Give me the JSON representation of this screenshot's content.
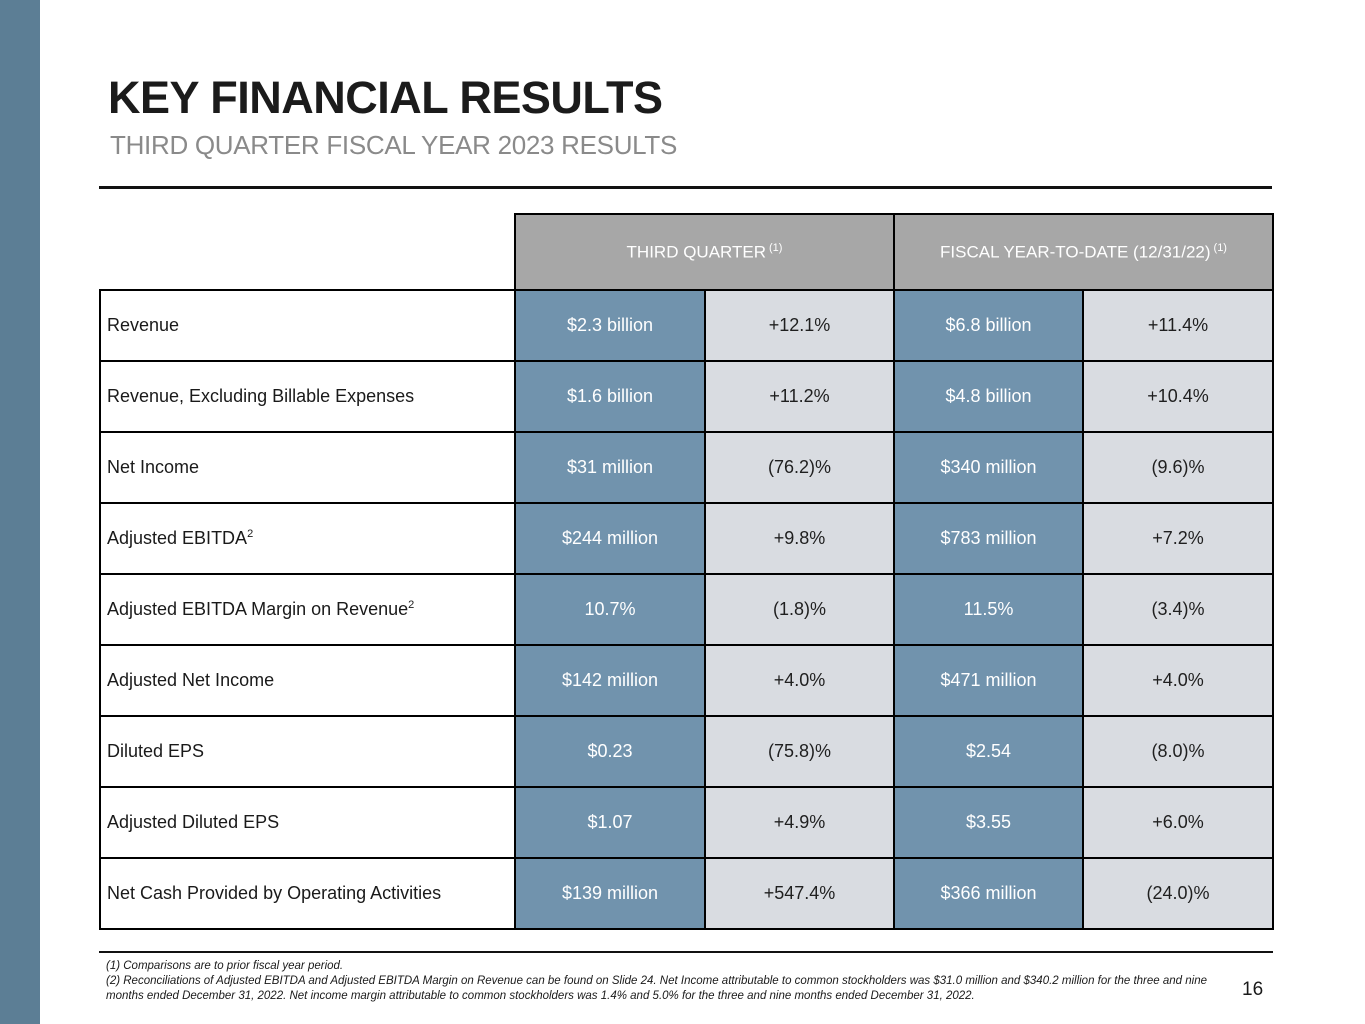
{
  "slide": {
    "title": "KEY FINANCIAL RESULTS",
    "subtitle": "THIRD QUARTER FISCAL YEAR 2023 RESULTS",
    "page_number": "16"
  },
  "table": {
    "header": {
      "third_quarter": {
        "label": "THIRD QUARTER",
        "sup": "(1)"
      },
      "fiscal_ytd": {
        "label": "FISCAL YEAR-TO-DATE (12/31/22)",
        "sup": "(1)"
      }
    },
    "rows": [
      {
        "label": "Revenue",
        "q3_value": "$2.3 billion",
        "q3_change": "+12.1%",
        "ytd_value": "$6.8 billion",
        "ytd_change": "+11.4%"
      },
      {
        "label": "Revenue, Excluding Billable Expenses",
        "q3_value": "$1.6 billion",
        "q3_change": "+11.2%",
        "ytd_value": "$4.8 billion",
        "ytd_change": "+10.4%"
      },
      {
        "label": "Net Income",
        "q3_value": "$31 million",
        "q3_change": "(76.2)%",
        "ytd_value": "$340 million",
        "ytd_change": "(9.6)%"
      },
      {
        "label": "Adjusted EBITDA",
        "label_sup": "2",
        "q3_value": "$244 million",
        "q3_change": "+9.8%",
        "ytd_value": "$783 million",
        "ytd_change": "+7.2%"
      },
      {
        "label": "Adjusted EBITDA Margin on Revenue",
        "label_sup": "2",
        "q3_value": "10.7%",
        "q3_change": "(1.8)%",
        "ytd_value": "11.5%",
        "ytd_change": "(3.4)%"
      },
      {
        "label": "Adjusted Net Income",
        "q3_value": "$142 million",
        "q3_change": "+4.0%",
        "ytd_value": "$471 million",
        "ytd_change": "+4.0%"
      },
      {
        "label": "Diluted EPS",
        "q3_value": "$0.23",
        "q3_change": "(75.8)%",
        "ytd_value": "$2.54",
        "ytd_change": "(8.0)%"
      },
      {
        "label": "Adjusted Diluted EPS",
        "q3_value": "$1.07",
        "q3_change": "+4.9%",
        "ytd_value": "$3.55",
        "ytd_change": "+6.0%"
      },
      {
        "label": "Net Cash Provided by Operating Activities",
        "q3_value": "$139 million",
        "q3_change": "+547.4%",
        "ytd_value": "$366 million",
        "ytd_change": "(24.0)%"
      }
    ]
  },
  "footnotes": {
    "note1": "(1) Comparisons are to prior fiscal year period.",
    "note2": "(2) Reconciliations of Adjusted EBITDA and Adjusted EBITDA Margin on Revenue can be found on Slide 24. Net Income attributable to common stockholders was $31.0 million and $340.2 million for the three and nine months ended December 31, 2022.  Net income margin attributable to common stockholders was 1.4% and 5.0% for the three and nine months ended December 31, 2022."
  },
  "colors": {
    "sidebar": "#5c7e95",
    "cell-blue": "#7193ad",
    "cell-gray": "#d9dce1",
    "header-gray": "#a7a7a7",
    "subtitle-gray": "#8a8a8a",
    "border": "#000000"
  }
}
